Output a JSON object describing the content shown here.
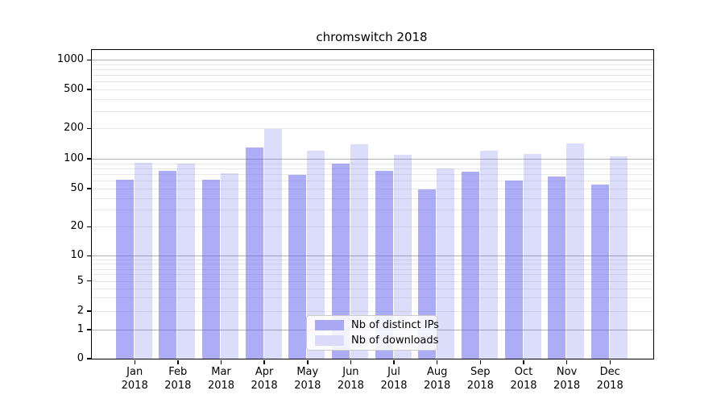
{
  "title": "chromswitch 2018",
  "chart_data": {
    "type": "bar",
    "title": "chromswitch 2018",
    "categories": [
      "Jan",
      "Feb",
      "Mar",
      "Apr",
      "May",
      "Jun",
      "Jul",
      "Aug",
      "Sep",
      "Oct",
      "Nov",
      "Dec"
    ],
    "year": "2018",
    "series": [
      {
        "name": "Nb of distinct IPs",
        "color": "rgba(97,95,238,0.52)",
        "legend_color": "#a9a8f2",
        "values": [
          62,
          76,
          61,
          131,
          69,
          90,
          76,
          49,
          74,
          60,
          66,
          55
        ]
      },
      {
        "name": "Nb of downloads",
        "color": "rgba(97,95,238,0.22)",
        "legend_color": "#dcdbfa",
        "values": [
          91,
          90,
          72,
          198,
          120,
          141,
          111,
          80,
          120,
          113,
          143,
          106
        ]
      }
    ],
    "yticks": [
      0,
      1,
      2,
      5,
      10,
      20,
      50,
      100,
      200,
      500,
      1000
    ],
    "yscale": "symlog",
    "ylim": [
      0,
      1250
    ],
    "grid": true,
    "legend_position": "lower-center",
    "axis_color": "#000000",
    "major_grid_color": "#b0b0b0",
    "minor_grid_color": "#e8e8e8",
    "background_color": "#ffffff"
  }
}
